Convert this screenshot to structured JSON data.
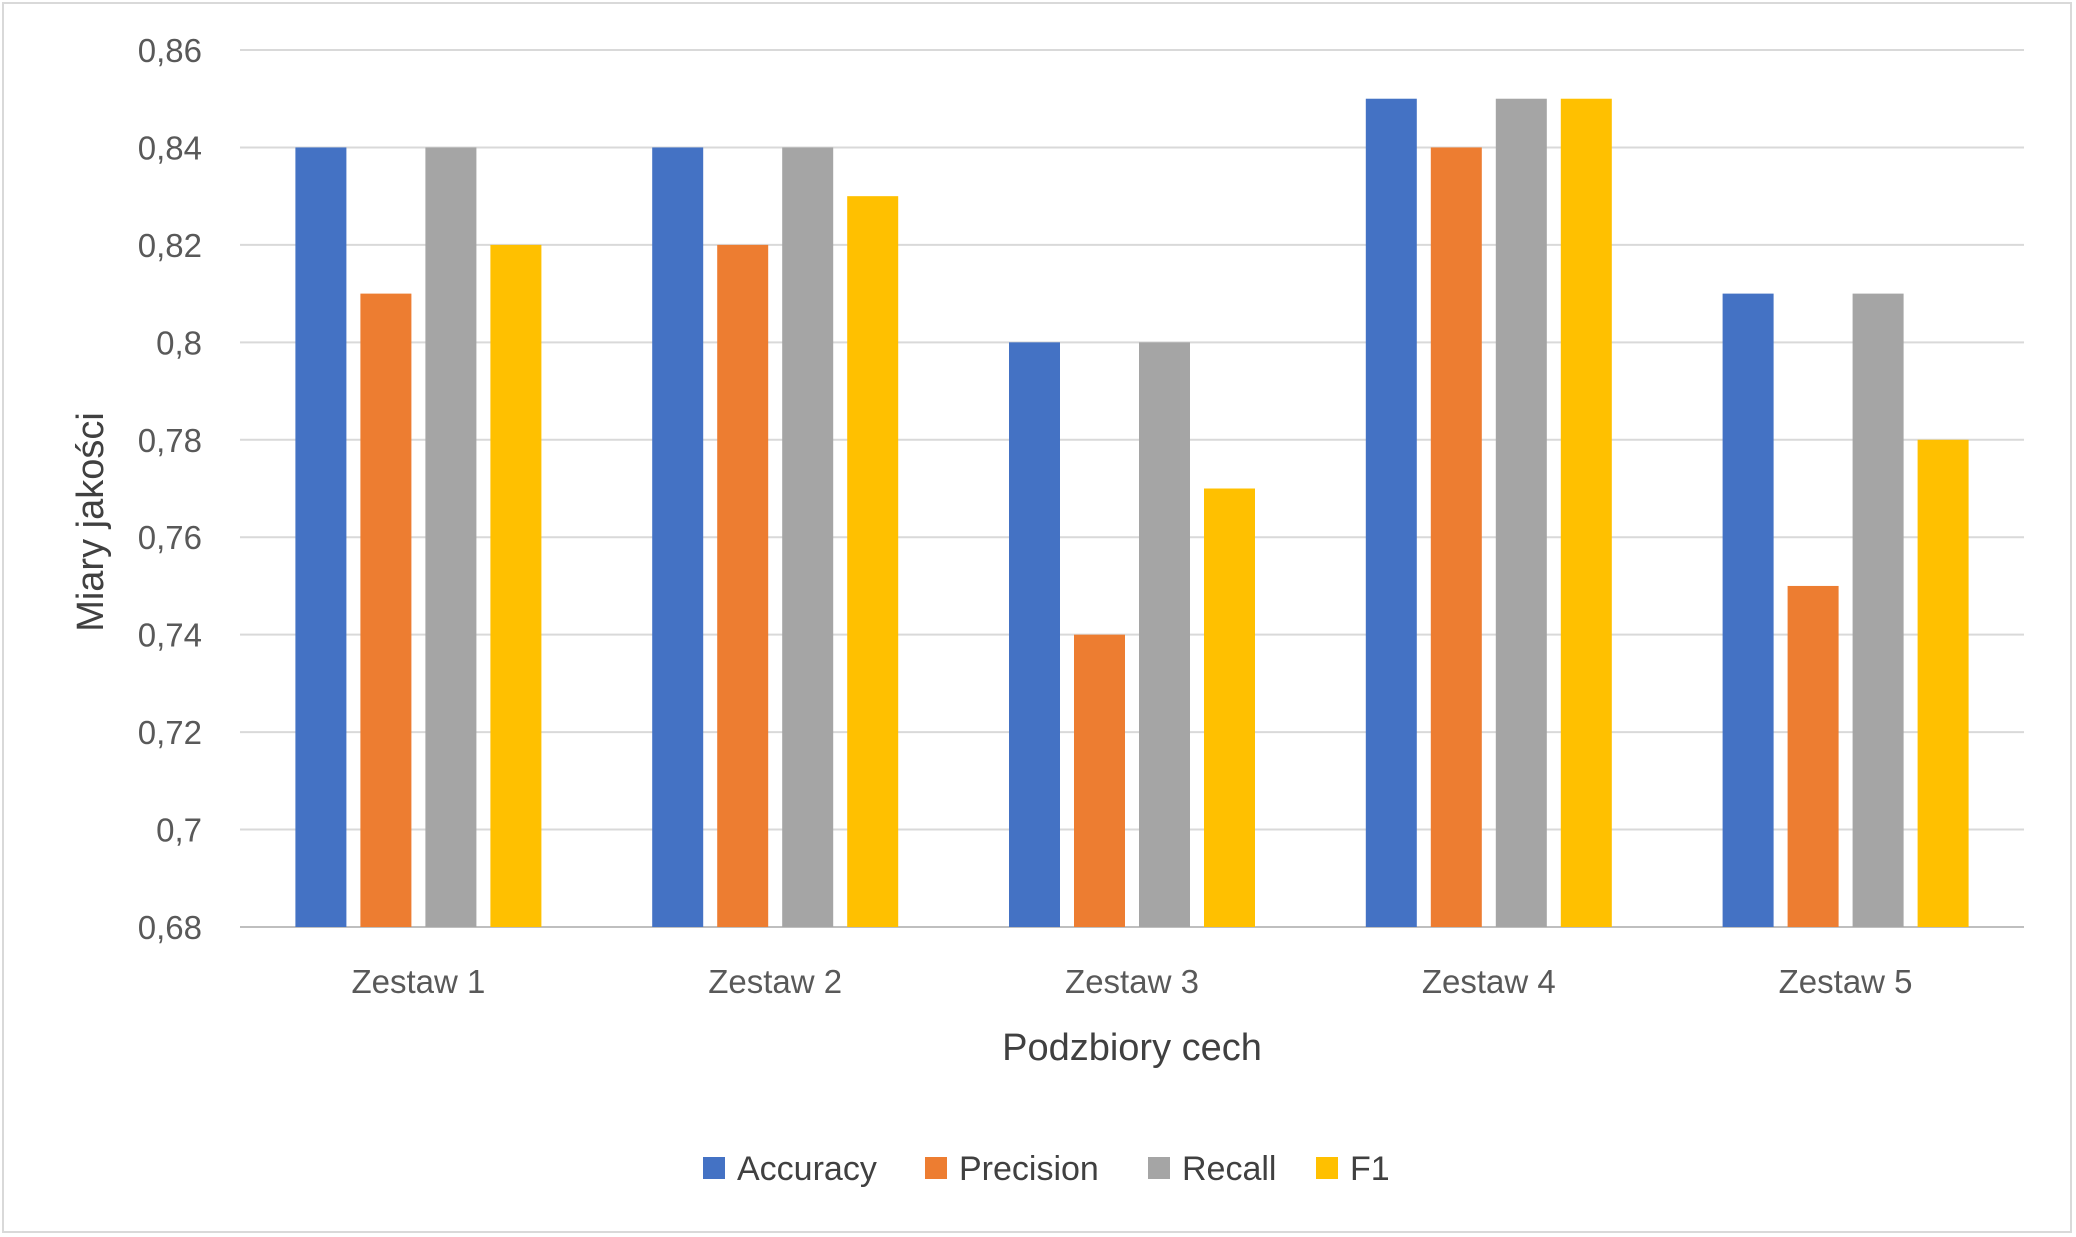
{
  "chart_data": {
    "type": "bar",
    "xlabel": "Podzbiory cech",
    "ylabel": "Miary jakości",
    "ylim": [
      0.68,
      0.86
    ],
    "ytick_step": 0.02,
    "y_ticks": [
      "0,68",
      "0,7",
      "0,72",
      "0,74",
      "0,76",
      "0,78",
      "0,8",
      "0,82",
      "0,84",
      "0,86"
    ],
    "categories": [
      "Zestaw 1",
      "Zestaw 2",
      "Zestaw 3",
      "Zestaw 4",
      "Zestaw 5"
    ],
    "series": [
      {
        "name": "Accuracy",
        "color": "#4472c4",
        "values": [
          0.84,
          0.84,
          0.8,
          0.85,
          0.81
        ]
      },
      {
        "name": "Precision",
        "color": "#ed7d31",
        "values": [
          0.81,
          0.82,
          0.74,
          0.84,
          0.75
        ]
      },
      {
        "name": "Recall",
        "color": "#a5a5a5",
        "values": [
          0.84,
          0.84,
          0.8,
          0.85,
          0.81
        ]
      },
      {
        "name": "F1",
        "color": "#ffc000",
        "values": [
          0.82,
          0.83,
          0.77,
          0.85,
          0.78
        ]
      }
    ],
    "grid": true,
    "legend": "bottom"
  }
}
